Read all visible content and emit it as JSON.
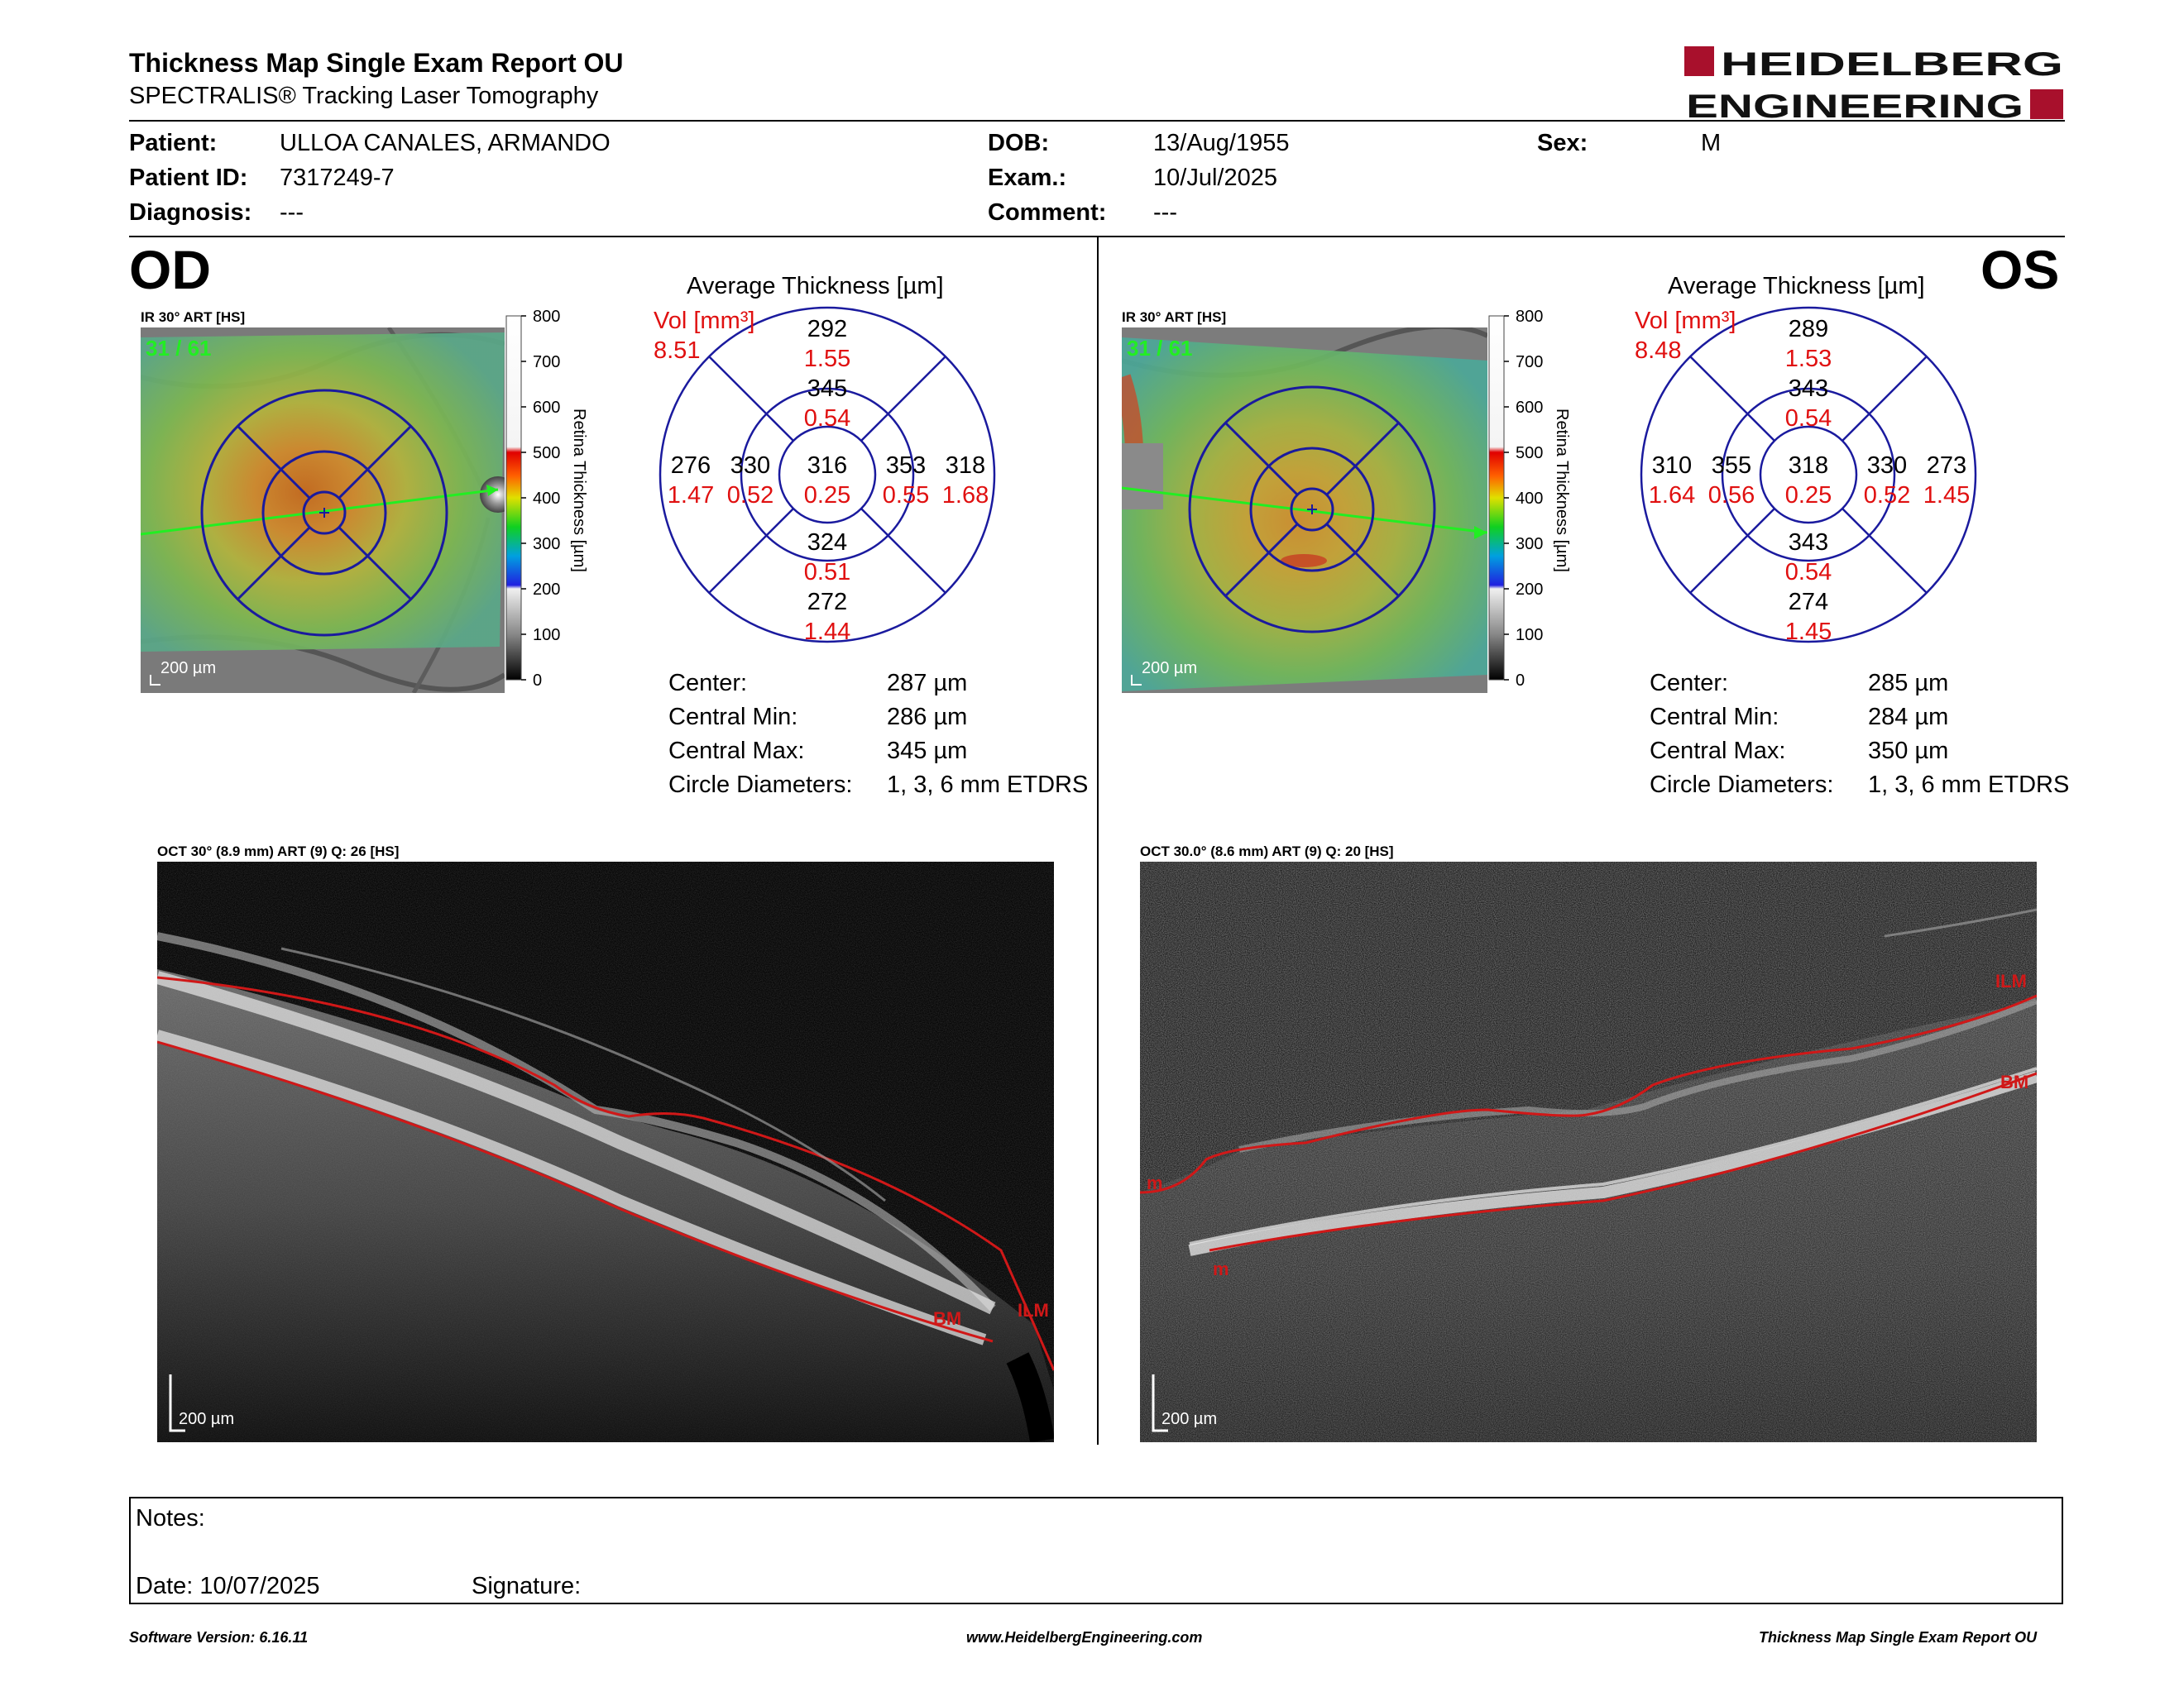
{
  "header": {
    "title": "Thickness Map Single Exam Report OU",
    "subtitle": "SPECTRALIS® Tracking Laser Tomography",
    "logo_line1": "HEIDELBERG",
    "logo_line2": "ENGINEERING"
  },
  "patient": {
    "patient_label": "Patient:",
    "patient_value": "ULLOA CANALES, ARMANDO",
    "id_label": "Patient ID:",
    "id_value": "7317249-7",
    "diagnosis_label": "Diagnosis:",
    "diagnosis_value": "---",
    "dob_label": "DOB:",
    "dob_value": "13/Aug/1955",
    "exam_label": "Exam.:",
    "exam_value": "10/Jul/2025",
    "comment_label": "Comment:",
    "comment_value": "---",
    "sex_label": "Sex:",
    "sex_value": "M"
  },
  "colorbar": {
    "ticks": [
      "800",
      "700",
      "600",
      "500",
      "400",
      "300",
      "200",
      "100",
      "0"
    ],
    "label": "Retina Thickness [µm]"
  },
  "od": {
    "eye": "OD",
    "ir_caption": "IR 30° ART [HS]",
    "frame": "31 / 61",
    "scale": "200 µm",
    "avg_title": "Average Thickness [µm]",
    "vol_label": "Vol [mm³]",
    "vol_value": "8.51",
    "grid": {
      "center_t": "316",
      "center_v": "0.25",
      "inner_sup_t": "345",
      "inner_sup_v": "0.54",
      "inner_inf_t": "324",
      "inner_inf_v": "0.51",
      "inner_left_t": "330",
      "inner_left_v": "0.52",
      "inner_right_t": "353",
      "inner_right_v": "0.55",
      "outer_sup_t": "292",
      "outer_sup_v": "1.55",
      "outer_inf_t": "272",
      "outer_inf_v": "1.44",
      "outer_left_t": "276",
      "outer_left_v": "1.47",
      "outer_right_t": "318",
      "outer_right_v": "1.68"
    },
    "stats": {
      "center_label": "Center:",
      "center_value": "287 µm",
      "min_label": "Central Min:",
      "min_value": "286 µm",
      "max_label": "Central Max:",
      "max_value": "345 µm",
      "diam_label": "Circle Diameters:",
      "diam_value": "1, 3, 6 mm ETDRS"
    },
    "oct_caption": "OCT 30° (8.9 mm) ART (9) Q: 26 [HS]",
    "oct_scale": "200 µm",
    "oct_bm": "BM",
    "oct_ilm": "ILM"
  },
  "os": {
    "eye": "OS",
    "ir_caption": "IR 30° ART [HS]",
    "frame": "31 / 61",
    "scale": "200 µm",
    "avg_title": "Average Thickness [µm]",
    "vol_label": "Vol [mm³]",
    "vol_value": "8.48",
    "grid": {
      "center_t": "318",
      "center_v": "0.25",
      "inner_sup_t": "343",
      "inner_sup_v": "0.54",
      "inner_inf_t": "343",
      "inner_inf_v": "0.54",
      "inner_left_t": "355",
      "inner_left_v": "0.56",
      "inner_right_t": "330",
      "inner_right_v": "0.52",
      "outer_sup_t": "289",
      "outer_sup_v": "1.53",
      "outer_inf_t": "274",
      "outer_inf_v": "1.45",
      "outer_left_t": "310",
      "outer_left_v": "1.64",
      "outer_right_t": "273",
      "outer_right_v": "1.45"
    },
    "stats": {
      "center_label": "Center:",
      "center_value": "285 µm",
      "min_label": "Central Min:",
      "min_value": "284 µm",
      "max_label": "Central Max:",
      "max_value": "350 µm",
      "diam_label": "Circle Diameters:",
      "diam_value": "1, 3, 6 mm ETDRS"
    },
    "oct_caption": "OCT 30.0° (8.6 mm) ART (9) Q: 20 [HS]",
    "oct_scale": "200 µm",
    "oct_bm": "BM",
    "oct_ilm": "ILM",
    "oct_m1": "m",
    "oct_m2": "m"
  },
  "notes": {
    "notes_label": "Notes:",
    "date_label": "Date: 10/07/2025",
    "signature_label": "Signature:"
  },
  "footer": {
    "software": "Software Version: 6.16.11",
    "website": "www.HeidelbergEngineering.com",
    "report": "Thickness Map Single Exam Report OU"
  },
  "colors": {
    "brand_red": "#a8102c",
    "etdrs_blue": "#1a1a9e",
    "vol_red": "#e01010",
    "scan_green": "#22ee22",
    "layer_red": "#d01818"
  }
}
